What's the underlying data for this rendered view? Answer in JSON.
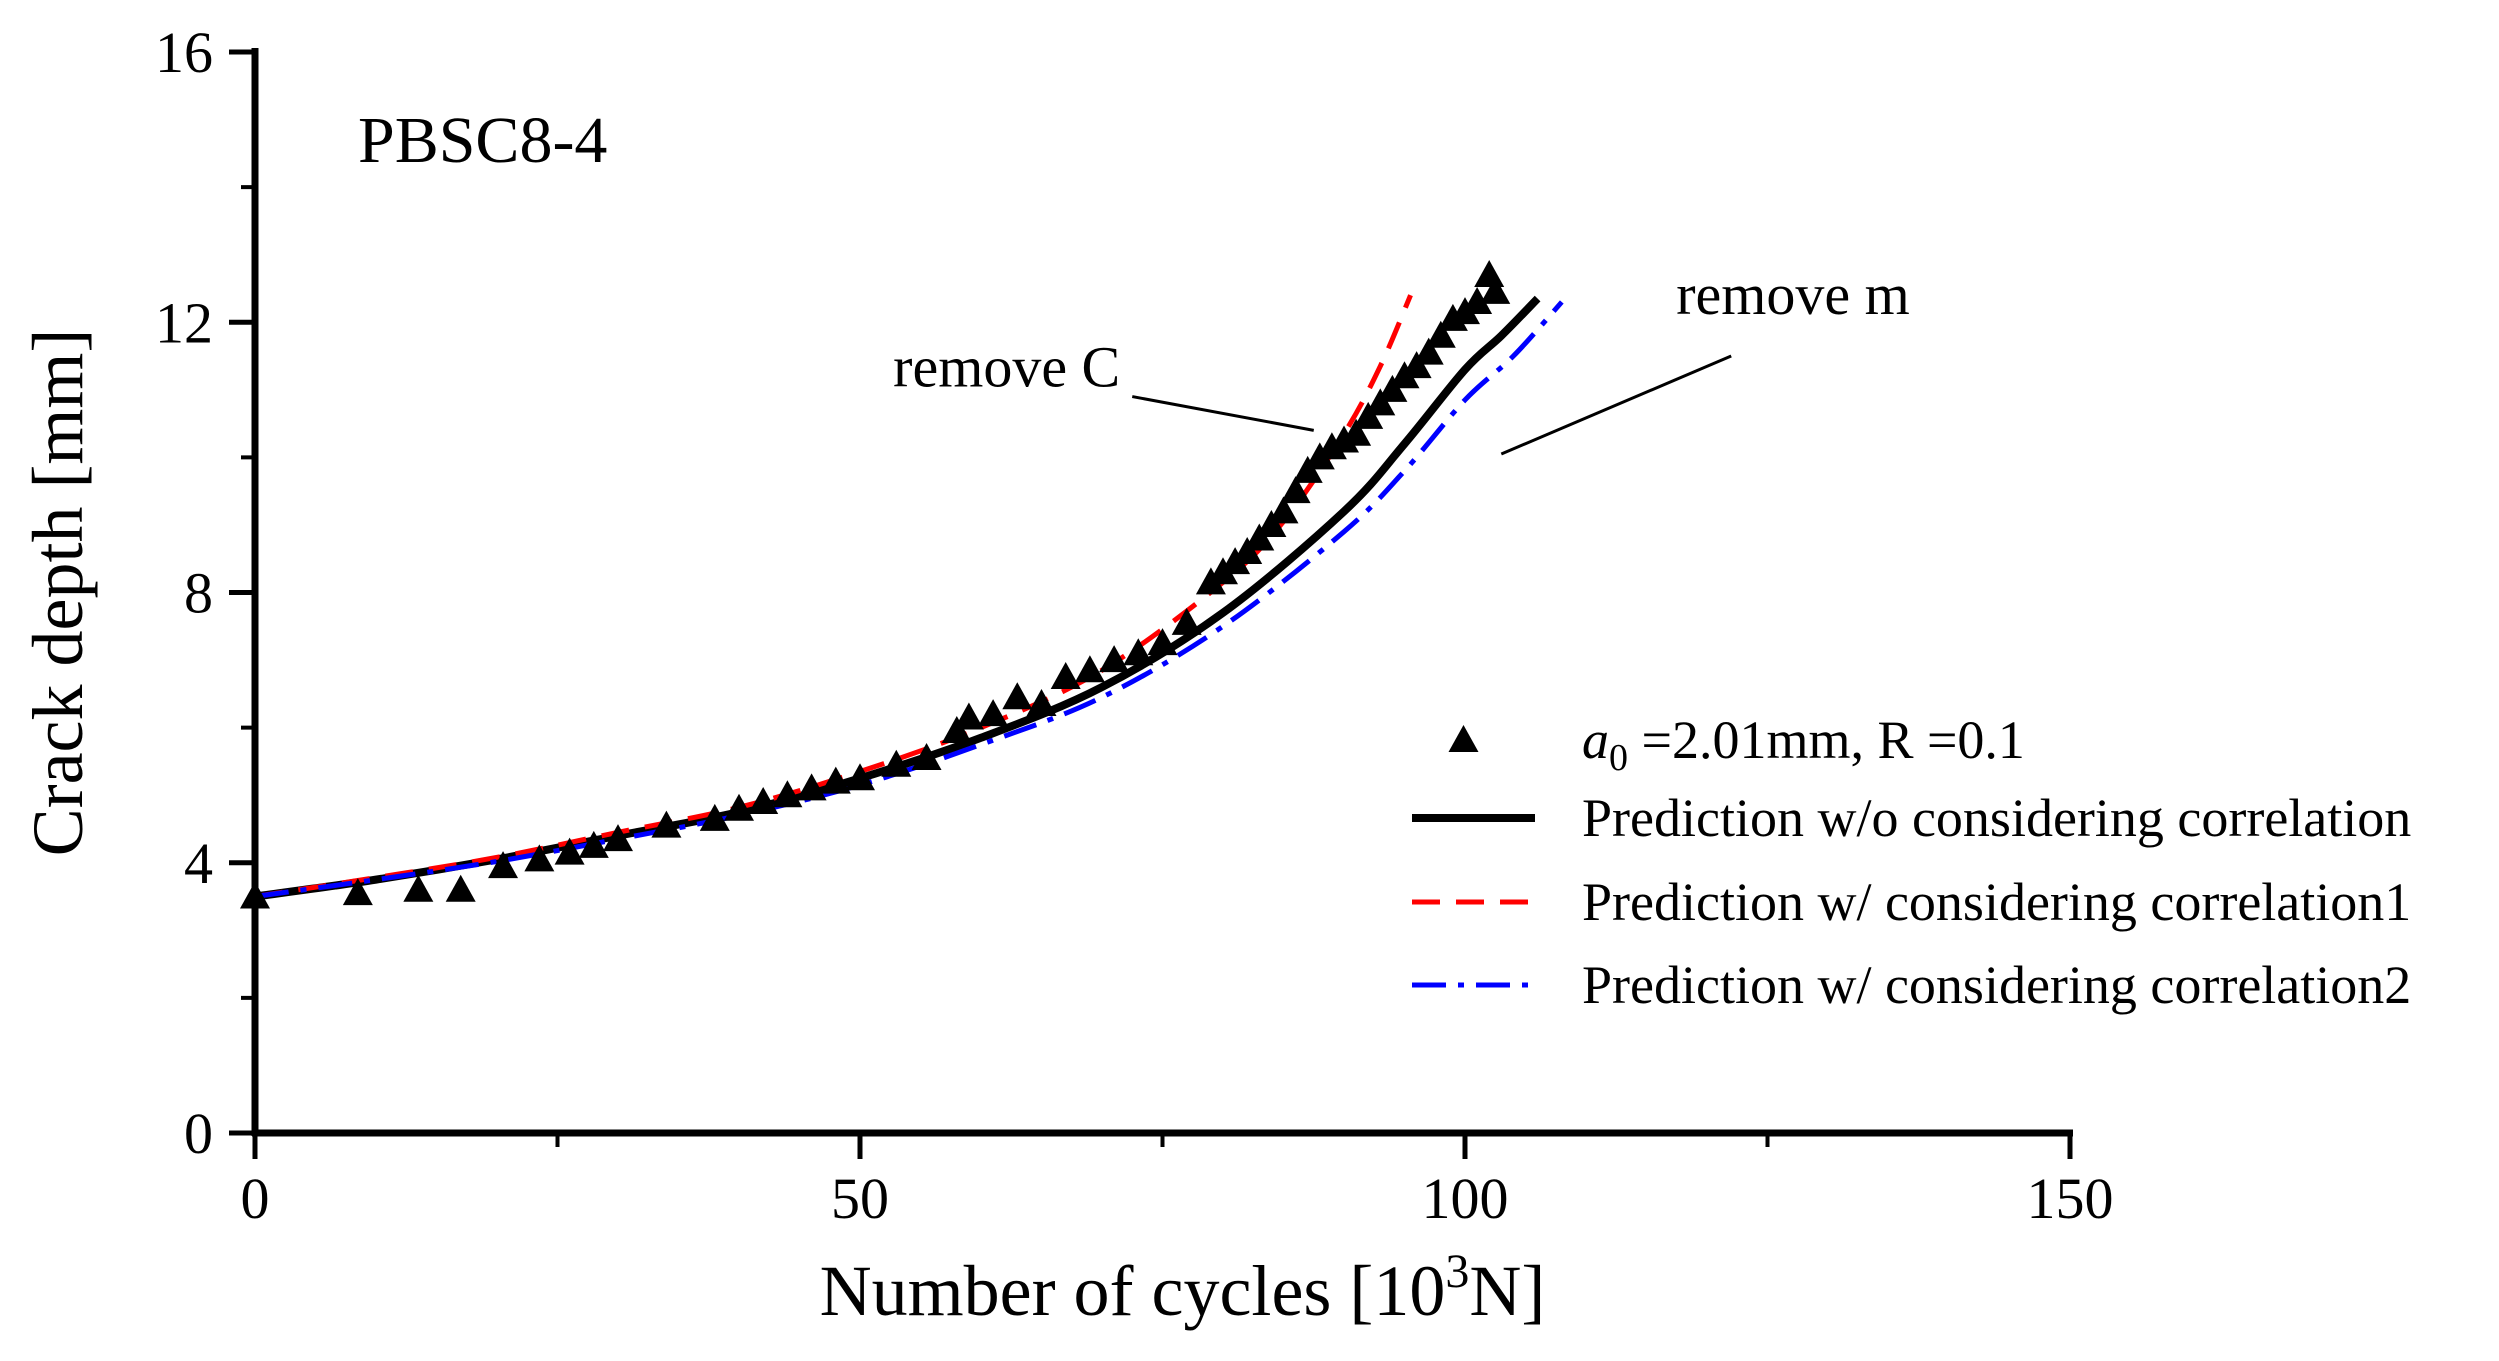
{
  "chart_data": {
    "type": "scatter",
    "title": "",
    "panel_label": "PBSC8-4",
    "xlabel": "Number of cycles [10",
    "xlabel_sup": "3",
    "xlabel_end": "N]",
    "ylabel": "Crack depth [mm]",
    "xlim": [
      0,
      150
    ],
    "ylim": [
      0,
      16
    ],
    "xticks": [
      0,
      50,
      100,
      150
    ],
    "yticks": [
      0,
      4,
      8,
      12,
      16
    ],
    "xticks_minor": [
      25,
      75,
      125
    ],
    "yticks_minor": [
      2,
      6,
      10,
      14
    ],
    "grid": false,
    "legend_position": "right",
    "series": [
      {
        "name": "a0 =2.01mm, R =0.1",
        "legend_label_italic": "a",
        "legend_label_sub": "0",
        "legend_label_rest": " =2.01mm, R =0.1",
        "kind": "marker",
        "marker": "triangle",
        "color": "#000000",
        "x": [
          0,
          8.5,
          13.5,
          17,
          20.5,
          23.5,
          26,
          28,
          30,
          34,
          38,
          40,
          42,
          44,
          46,
          48,
          50,
          53,
          55.5,
          58,
          59,
          61,
          63,
          65,
          67,
          69,
          71,
          73,
          75,
          77,
          79,
          80,
          81,
          82,
          83,
          84,
          85,
          86,
          87,
          88,
          89,
          90,
          91,
          92,
          93,
          94,
          95,
          96,
          97,
          98,
          99,
          100,
          101,
          102,
          102.5
        ],
        "y": [
          3.5,
          3.55,
          3.6,
          3.6,
          3.95,
          4.05,
          4.15,
          4.25,
          4.35,
          4.55,
          4.65,
          4.8,
          4.9,
          5.0,
          5.1,
          5.2,
          5.25,
          5.45,
          5.55,
          5.95,
          6.15,
          6.2,
          6.45,
          6.35,
          6.75,
          6.85,
          7.0,
          7.1,
          7.25,
          7.55,
          8.15,
          8.3,
          8.45,
          8.6,
          8.8,
          9.0,
          9.2,
          9.5,
          9.8,
          10.0,
          10.15,
          10.25,
          10.35,
          10.6,
          10.8,
          11.0,
          11.2,
          11.35,
          11.55,
          11.8,
          12.05,
          12.15,
          12.3,
          12.7,
          12.45
        ]
      },
      {
        "name": "Prediction w/o considering correlation",
        "kind": "line",
        "style": "solid",
        "color": "#000000",
        "x": [
          0,
          10,
          20,
          30,
          40,
          50,
          60,
          70,
          80,
          90,
          95,
          100,
          103,
          106
        ],
        "y": [
          3.5,
          3.75,
          4.05,
          4.4,
          4.75,
          5.25,
          5.85,
          6.6,
          7.7,
          9.2,
          10.2,
          11.3,
          11.8,
          12.35
        ]
      },
      {
        "name": "Prediction w/ considering correlation1",
        "kind": "line",
        "style": "dashed",
        "color": "#ff0000",
        "x": [
          0,
          10,
          20,
          30,
          40,
          50,
          60,
          70,
          80,
          85,
          90,
          93,
          95.5
        ],
        "y": [
          3.5,
          3.78,
          4.08,
          4.45,
          4.82,
          5.35,
          6.0,
          6.85,
          8.15,
          9.05,
          10.35,
          11.35,
          12.4
        ]
      },
      {
        "name": "Prediction w/ considering correlation2",
        "kind": "line",
        "style": "dashdot",
        "color": "#0000ff",
        "x": [
          0,
          10,
          20,
          30,
          40,
          50,
          60,
          70,
          80,
          90,
          95,
          100,
          104,
          108
        ],
        "y": [
          3.5,
          3.75,
          4.02,
          4.35,
          4.7,
          5.15,
          5.75,
          6.45,
          7.5,
          8.9,
          9.8,
          10.85,
          11.5,
          12.3
        ]
      }
    ],
    "annotations": [
      {
        "text": "remove C",
        "pointer_from": [
          72.5,
          10.9
        ],
        "pointer_to": [
          87.5,
          10.4
        ]
      },
      {
        "text": "remove m",
        "pointer_from": [
          122,
          11.5
        ],
        "pointer_to": [
          103,
          10.05
        ]
      }
    ]
  }
}
